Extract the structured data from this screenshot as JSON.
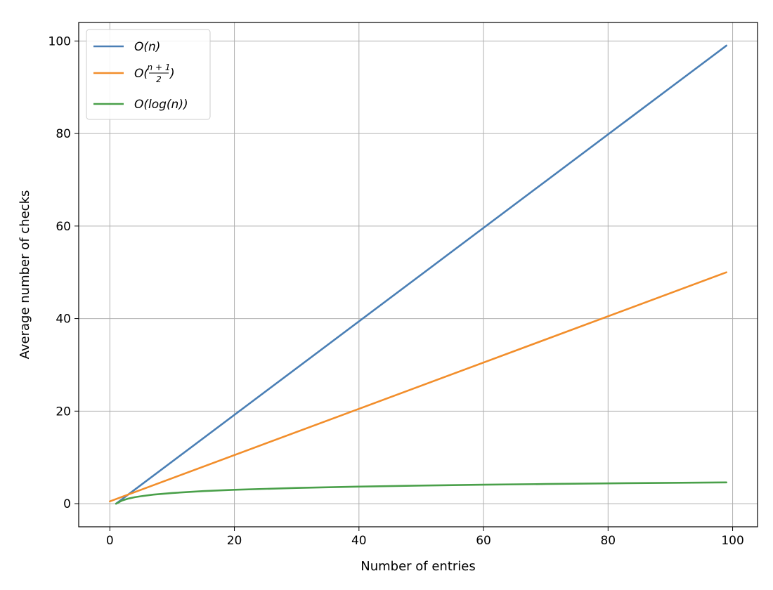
{
  "chart_data": {
    "type": "line",
    "title": "",
    "xlabel": "Number of entries",
    "ylabel": "Average number of checks",
    "xlim": [
      -5,
      104
    ],
    "ylim": [
      -5,
      104
    ],
    "xticks": [
      0,
      20,
      40,
      60,
      80,
      100
    ],
    "yticks": [
      0,
      20,
      40,
      60,
      80,
      100
    ],
    "grid": true,
    "legend_position": "top-left",
    "series": [
      {
        "name": "O(n)",
        "color": "#4a7fb5",
        "x": [
          1,
          99
        ],
        "y": [
          0,
          99
        ],
        "legend": {
          "prefix": "O(",
          "frac_num": "",
          "frac_den": "",
          "main": "n",
          "suffix": ")"
        }
      },
      {
        "name": "O((n+1)/2)",
        "color": "#f28e2b",
        "x": [
          0,
          99
        ],
        "y": [
          0.5,
          50
        ],
        "legend": {
          "prefix": "O(",
          "frac_num": "n + 1",
          "frac_den": "2",
          "main": "",
          "suffix": ")"
        }
      },
      {
        "name": "O(log(n))",
        "color": "#4aa04a",
        "x": [
          1,
          2,
          3,
          4,
          5,
          7,
          10,
          15,
          20,
          30,
          40,
          50,
          60,
          70,
          80,
          90,
          99
        ],
        "y": [
          0,
          0.69,
          1.1,
          1.39,
          1.61,
          1.95,
          2.3,
          2.71,
          3.0,
          3.4,
          3.69,
          3.91,
          4.09,
          4.25,
          4.38,
          4.5,
          4.6
        ],
        "legend": {
          "prefix": "O(",
          "frac_num": "",
          "frac_den": "",
          "main": "log(n)",
          "suffix": ")"
        }
      }
    ]
  }
}
